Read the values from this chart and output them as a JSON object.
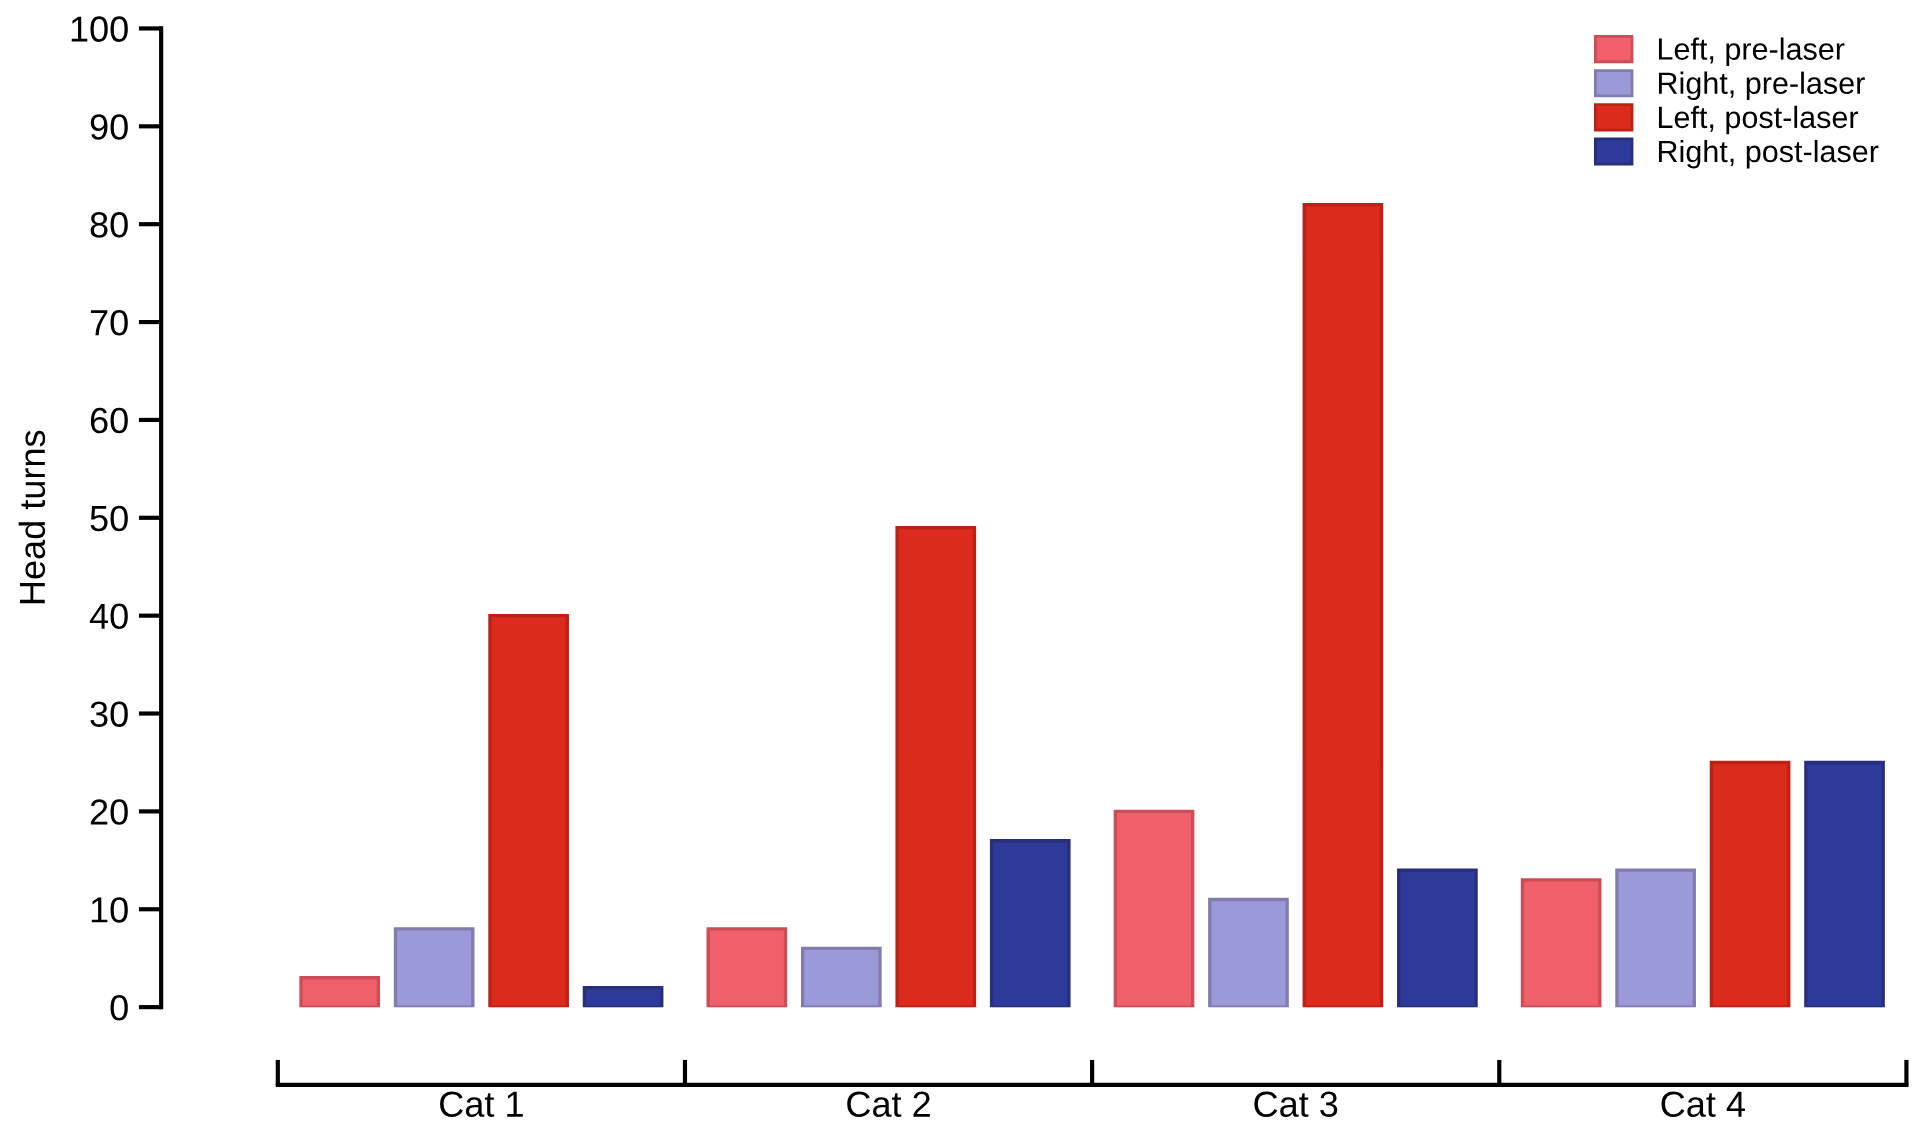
{
  "chart_data": {
    "type": "bar",
    "ylabel": "Head turns",
    "categories": [
      "Cat 1",
      "Cat 2",
      "Cat 3",
      "Cat 4"
    ],
    "series": [
      {
        "name": "Left, pre-laser",
        "color": "#f0606a",
        "values": [
          3,
          8,
          20,
          13
        ]
      },
      {
        "name": "Right, pre-laser",
        "color": "#9a9ad8",
        "values": [
          8,
          6,
          11,
          14
        ]
      },
      {
        "name": "Left, post-laser",
        "color": "#dc2a1c",
        "values": [
          40,
          49,
          82,
          25
        ]
      },
      {
        "name": "Right, post-laser",
        "color": "#2e3a9a",
        "values": [
          2,
          17,
          14,
          25
        ]
      }
    ],
    "ylim": [
      0,
      100
    ],
    "yticks": [
      0,
      10,
      20,
      30,
      40,
      50,
      60,
      70,
      80,
      90,
      100
    ],
    "grid": false,
    "legend": "top right"
  }
}
